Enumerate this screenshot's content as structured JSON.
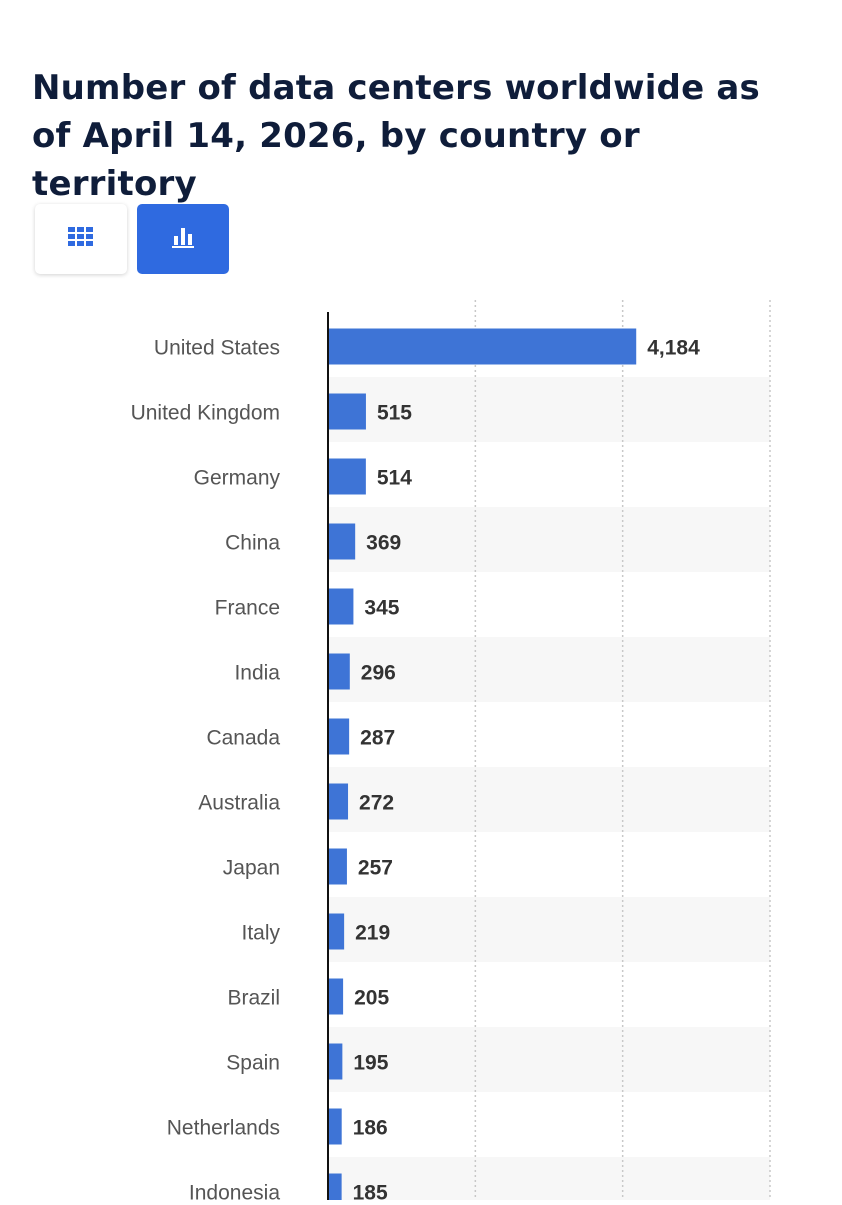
{
  "page": {
    "title": "Number of data centers worldwide as of April 14, 2026, by country or territory"
  },
  "view_toggle": {
    "table_icon": "table-grid-icon",
    "chart_icon": "bar-chart-icon",
    "active": "chart",
    "active_color": "#2f6ae0"
  },
  "colors": {
    "bar": "#3e74d6",
    "title": "#0f1d3a",
    "label": "#555555",
    "value": "#333333",
    "stripe": "#f7f7f7"
  },
  "chart_data": {
    "type": "bar",
    "orientation": "horizontal",
    "categories": [
      "United States",
      "United Kingdom",
      "Germany",
      "China",
      "France",
      "India",
      "Canada",
      "Australia",
      "Japan",
      "Italy",
      "Brazil",
      "Spain",
      "Netherlands",
      "Indonesia"
    ],
    "values": [
      4184,
      515,
      514,
      369,
      345,
      296,
      287,
      272,
      257,
      219,
      205,
      195,
      186,
      185
    ],
    "value_labels": [
      "4,184",
      "515",
      "514",
      "369",
      "345",
      "296",
      "287",
      "272",
      "257",
      "219",
      "205",
      "195",
      "186",
      "185"
    ],
    "xlim": [
      0,
      6000
    ],
    "gridlines": [
      2000,
      4000,
      6000
    ],
    "grid": true,
    "legend": "none"
  }
}
